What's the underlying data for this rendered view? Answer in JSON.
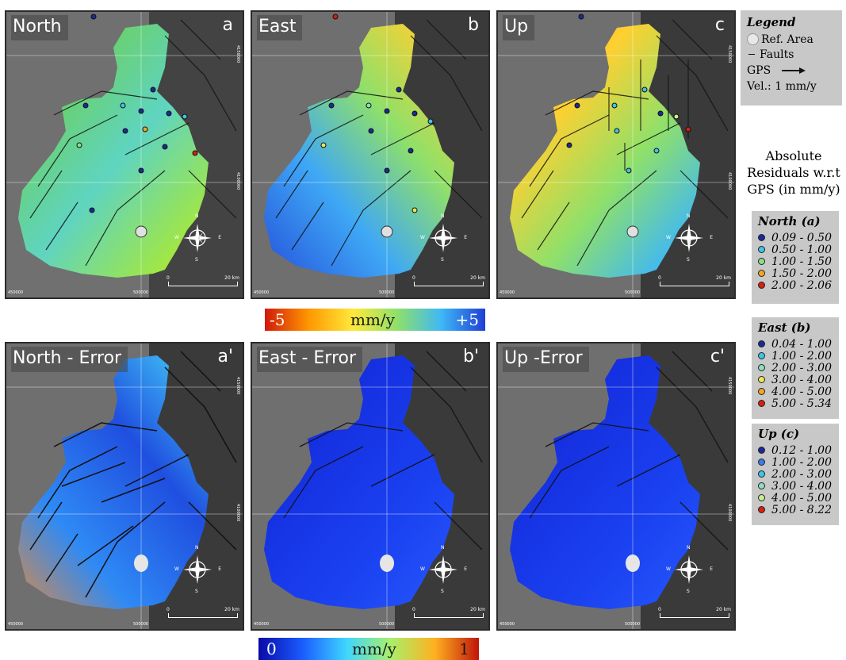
{
  "panels": [
    {
      "title": "North",
      "letter": "a"
    },
    {
      "title": "East",
      "letter": "b"
    },
    {
      "title": "Up",
      "letter": "c"
    },
    {
      "title": "North - Error",
      "letter": "a'"
    },
    {
      "title": "East - Error",
      "letter": "b'"
    },
    {
      "title": "Up -Error",
      "letter": "c'"
    }
  ],
  "map_labels": {
    "northing_upper": "4150000",
    "northing_lower": "4100000",
    "easting_left": "450000",
    "easting_mid": "500000",
    "scale_start": "0",
    "scale_end": "20 km",
    "compass_n": "N",
    "compass_s": "S",
    "compass_e": "E",
    "compass_w": "W"
  },
  "colorbar_velocity": {
    "min": "-5",
    "unit": "mm/y",
    "max": "+5",
    "colors": [
      "#d11a0a",
      "#ff9800",
      "#ffe93a",
      "#8fe06a",
      "#3fb8f5",
      "#1f3fd6"
    ]
  },
  "colorbar_error": {
    "min": "0",
    "unit": "mm/y",
    "max": "1",
    "colors": [
      "#0a0aa8",
      "#1a5cff",
      "#3fd6ff",
      "#a9f06a",
      "#ffb020",
      "#c0160a"
    ]
  },
  "legend": {
    "title": "Legend",
    "ref_area": "Ref. Area",
    "faults": "Faults",
    "gps": "GPS",
    "vel": "Vel.:  1 mm/y"
  },
  "residuals_title": [
    "Absolute",
    "Residuals w.r.t",
    "GPS (in mm/y)"
  ],
  "residual_groups": [
    {
      "title": "North (a)",
      "items": [
        {
          "label": "0.09 - 0.50",
          "color": "#1b2a9a"
        },
        {
          "label": "0.50 - 1.00",
          "color": "#3fc4e8"
        },
        {
          "label": "1.00 - 1.50",
          "color": "#8ae08a"
        },
        {
          "label": "1.50 - 2.00",
          "color": "#f5a623"
        },
        {
          "label": "2.00 - 2.06",
          "color": "#d62010"
        }
      ]
    },
    {
      "title": "East (b)",
      "items": [
        {
          "label": "0.04 - 1.00",
          "color": "#1b2a9a"
        },
        {
          "label": "1.00 - 2.00",
          "color": "#3fc4e8"
        },
        {
          "label": "2.00 - 3.00",
          "color": "#8ae0c0"
        },
        {
          "label": "3.00 - 4.00",
          "color": "#e8e85a"
        },
        {
          "label": "4.00 - 5.00",
          "color": "#f5a623"
        },
        {
          "label": "5.00 - 5.34",
          "color": "#d62010"
        }
      ]
    },
    {
      "title": "Up (c)",
      "items": [
        {
          "label": "0.12 - 1.00",
          "color": "#1b2a9a"
        },
        {
          "label": "1.00 - 2.00",
          "color": "#3f7ae8"
        },
        {
          "label": "2.00 - 3.00",
          "color": "#3fc4e8"
        },
        {
          "label": "3.00 - 4.00",
          "color": "#8ae0c0"
        },
        {
          "label": "4.00 - 5.00",
          "color": "#c8f08a"
        },
        {
          "label": "5.00 - 8.22",
          "color": "#d62010"
        }
      ]
    }
  ]
}
